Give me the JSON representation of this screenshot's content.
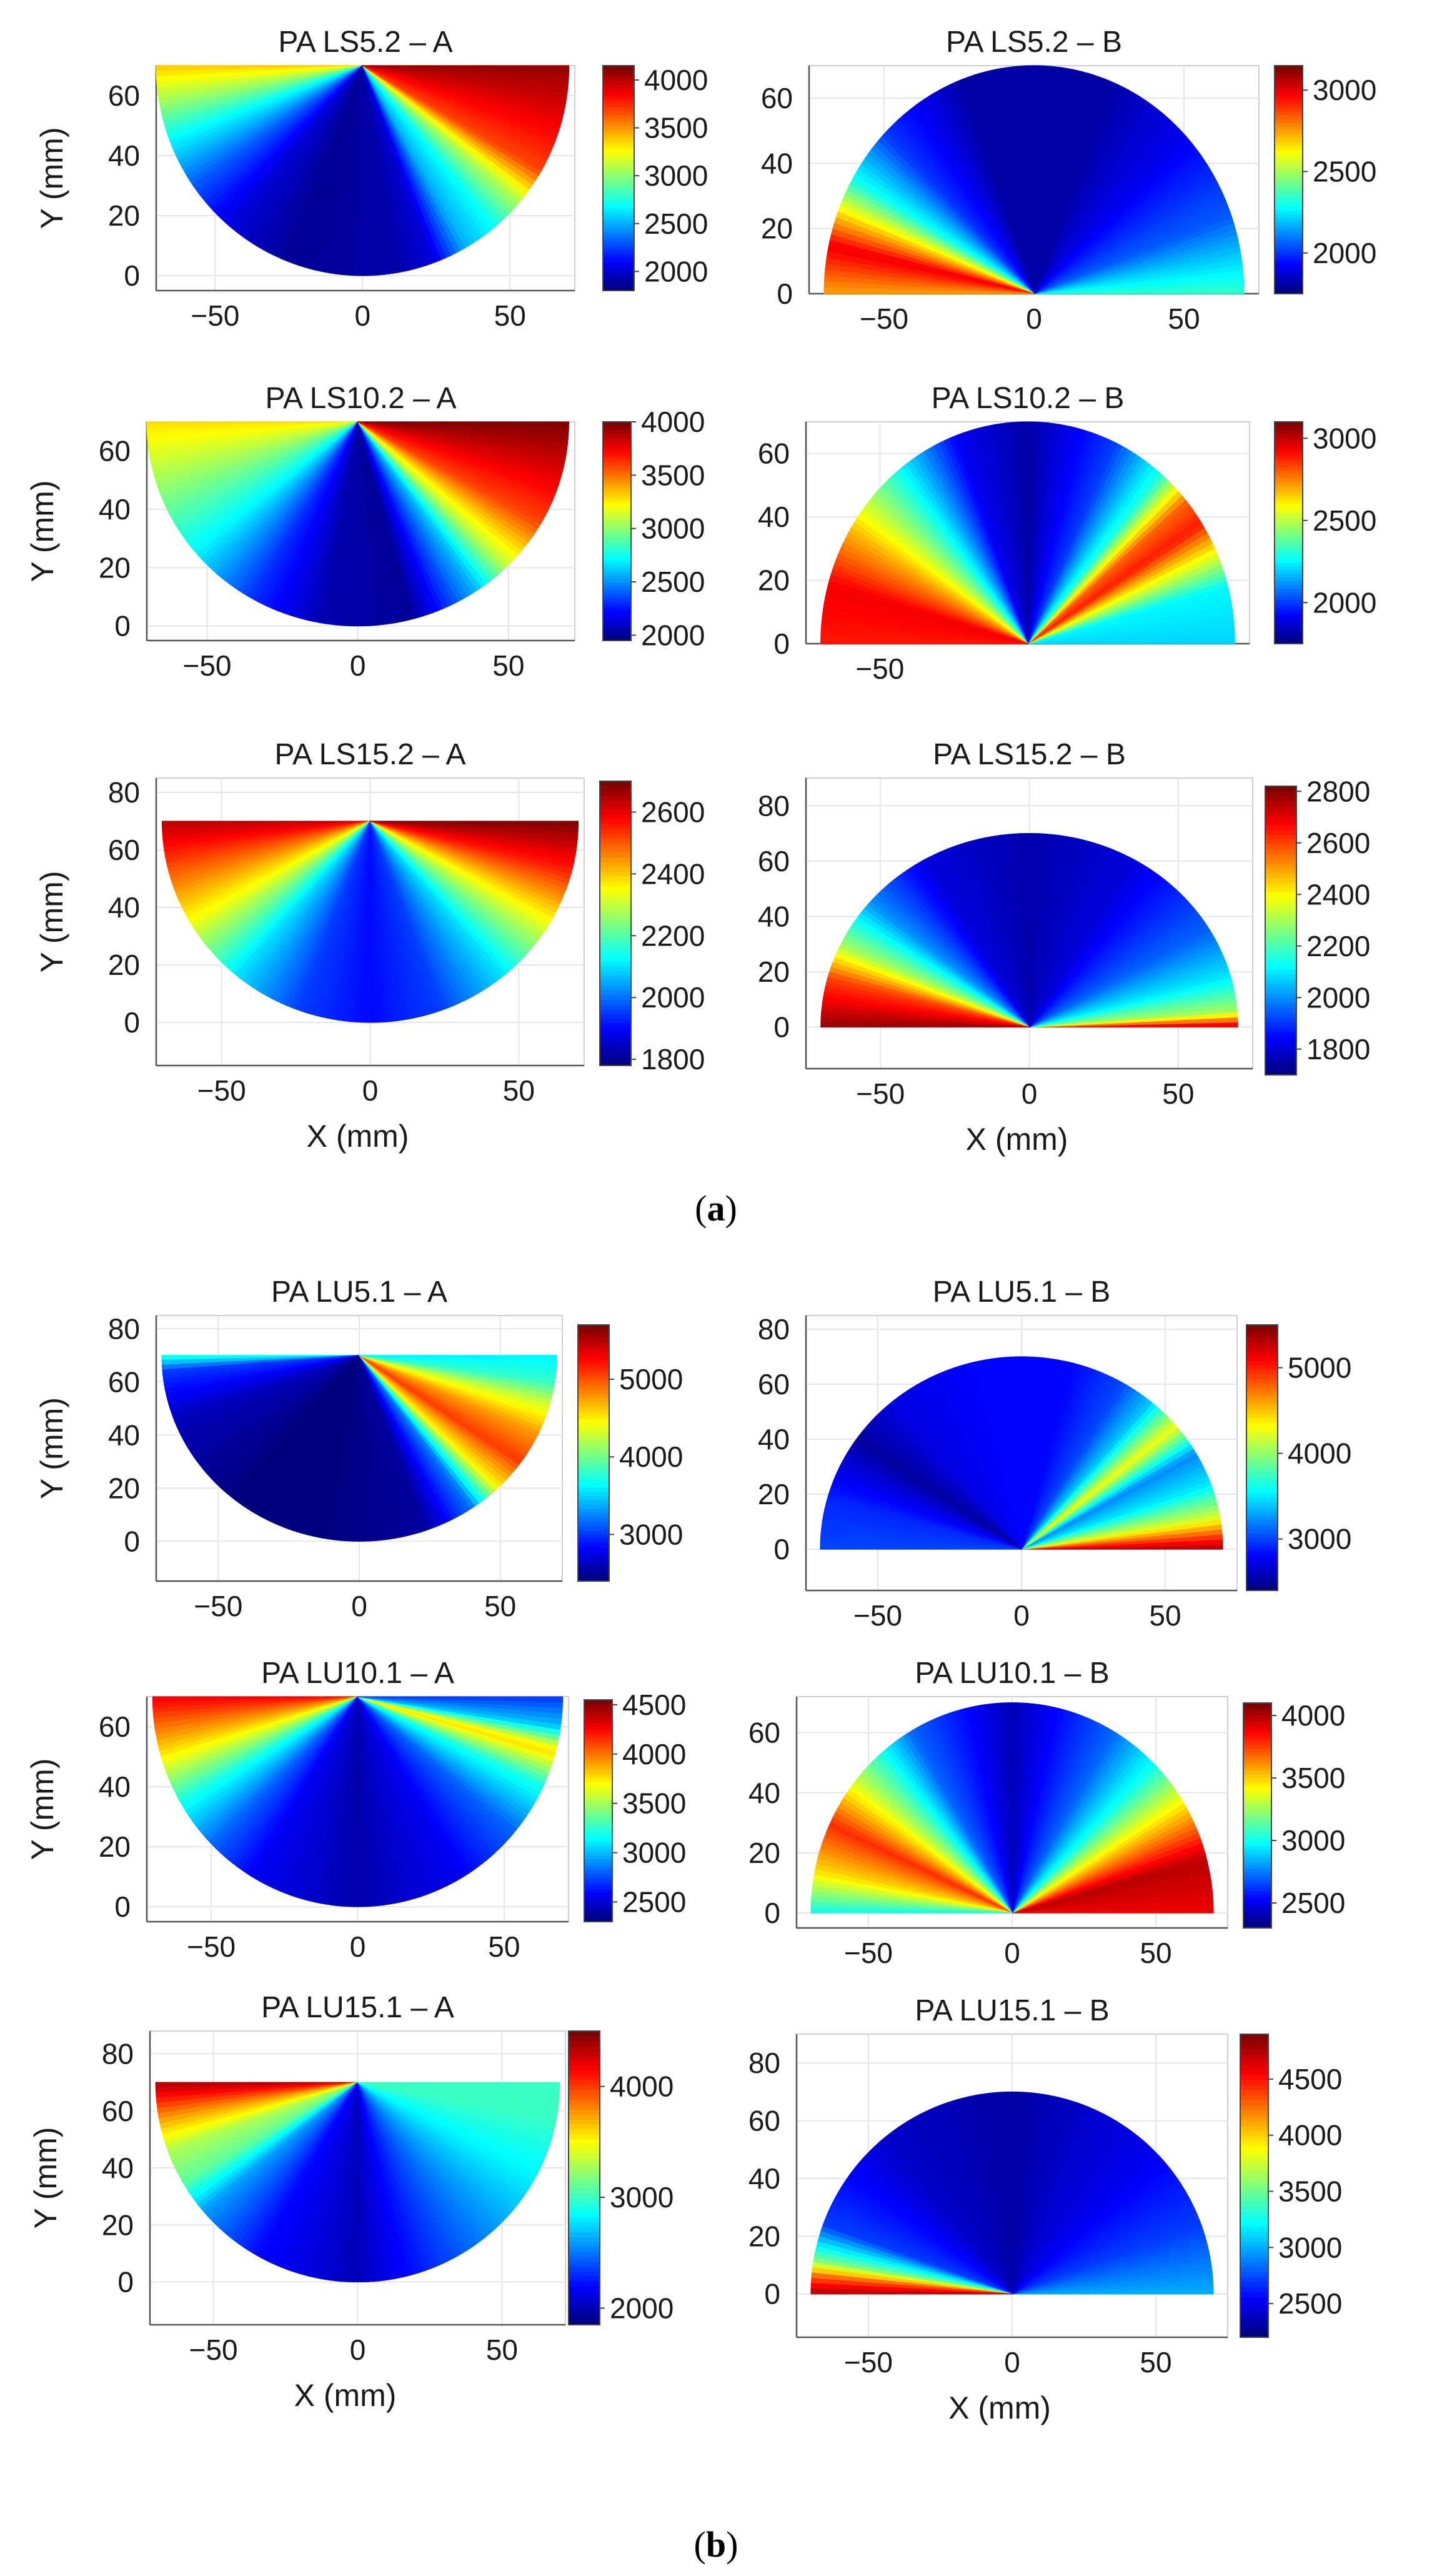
{
  "figure": {
    "label_a": "a",
    "label_b": "b"
  },
  "axis_labels": {
    "y": "Y (mm)",
    "x": "X (mm)"
  },
  "colors": {
    "map": [
      "#00007f",
      "#0000ff",
      "#007fff",
      "#00ffff",
      "#7fff7f",
      "#ffff00",
      "#ff7f00",
      "#ff0000",
      "#7f0000"
    ]
  },
  "chart_data": [
    {
      "type": "heatmap",
      "title": "PA LS5.2 – A",
      "xlabel": "",
      "ylabel": "Y (mm)",
      "shape": "lower",
      "xlim": [
        -70,
        72
      ],
      "ylim": [
        -5,
        70
      ],
      "xticks": [
        -50,
        0,
        50
      ],
      "yticks": [
        0,
        20,
        40,
        60
      ],
      "clim": [
        1800,
        4150
      ],
      "cticks": [
        2000,
        2500,
        3000,
        3500,
        4000
      ],
      "angle_profile": [
        [
          180,
          3400
        ],
        [
          200,
          2700
        ],
        [
          215,
          2300
        ],
        [
          230,
          2000
        ],
        [
          250,
          1850
        ],
        [
          280,
          1900
        ],
        [
          290,
          2000
        ],
        [
          300,
          2500
        ],
        [
          310,
          2700
        ],
        [
          320,
          3100
        ],
        [
          330,
          3700
        ],
        [
          345,
          3900
        ],
        [
          360,
          4100
        ]
      ]
    },
    {
      "type": "heatmap",
      "title": "PA LS5.2 – B",
      "xlabel": "",
      "ylabel": "",
      "shape": "upper",
      "xlim": [
        -75,
        75
      ],
      "ylim": [
        0,
        70
      ],
      "xticks": [
        -50,
        0,
        50
      ],
      "yticks": [
        0,
        20,
        40,
        60
      ],
      "clim": [
        1750,
        3150
      ],
      "cticks": [
        2000,
        2500,
        3000
      ],
      "angle_profile": [
        [
          0,
          2350
        ],
        [
          20,
          2050
        ],
        [
          45,
          1900
        ],
        [
          70,
          1800
        ],
        [
          110,
          1800
        ],
        [
          135,
          2000
        ],
        [
          150,
          2300
        ],
        [
          160,
          2700
        ],
        [
          168,
          3000
        ],
        [
          180,
          2750
        ]
      ]
    },
    {
      "type": "heatmap",
      "title": "PA LS10.2 – A",
      "xlabel": "",
      "ylabel": "Y (mm)",
      "shape": "lower",
      "xlim": [
        -70,
        72
      ],
      "ylim": [
        -5,
        70
      ],
      "xticks": [
        -50,
        0,
        50
      ],
      "yticks": [
        0,
        20,
        40,
        60
      ],
      "clim": [
        1950,
        4000
      ],
      "cticks": [
        2000,
        2500,
        3000,
        3500,
        4000
      ],
      "angle_profile": [
        [
          180,
          3300
        ],
        [
          200,
          3000
        ],
        [
          220,
          2700
        ],
        [
          240,
          2300
        ],
        [
          260,
          2050
        ],
        [
          285,
          2000
        ],
        [
          295,
          2300
        ],
        [
          305,
          2600
        ],
        [
          315,
          3100
        ],
        [
          330,
          3600
        ],
        [
          345,
          3800
        ],
        [
          360,
          4000
        ]
      ]
    },
    {
      "type": "heatmap",
      "title": "PA LS10.2 – B",
      "xlabel": "",
      "ylabel": "",
      "shape": "upper",
      "xlim": [
        -75,
        75
      ],
      "ylim": [
        0,
        70
      ],
      "xticks": [
        -50
      ],
      "yticks": [
        0,
        20,
        40,
        60
      ],
      "clim": [
        1750,
        3100
      ],
      "cticks": [
        2000,
        2500,
        3000
      ],
      "angle_profile": [
        [
          0,
          2200
        ],
        [
          15,
          2250
        ],
        [
          25,
          2600
        ],
        [
          33,
          2900
        ],
        [
          40,
          2800
        ],
        [
          50,
          2300
        ],
        [
          65,
          2000
        ],
        [
          90,
          1800
        ],
        [
          110,
          1900
        ],
        [
          130,
          2300
        ],
        [
          150,
          2700
        ],
        [
          165,
          2950
        ],
        [
          180,
          2900
        ]
      ]
    },
    {
      "type": "heatmap",
      "title": "PA LS15.2 – A",
      "xlabel": "X (mm)",
      "ylabel": "Y (mm)",
      "shape": "lower",
      "xlim": [
        -72,
        72
      ],
      "ylim": [
        -15,
        85
      ],
      "xticks": [
        -50,
        0,
        50
      ],
      "yticks": [
        0,
        20,
        40,
        60,
        80
      ],
      "clim": [
        1780,
        2700
      ],
      "cticks": [
        1800,
        2000,
        2200,
        2400,
        2600
      ],
      "angle_profile": [
        [
          180,
          2650
        ],
        [
          195,
          2500
        ],
        [
          210,
          2350
        ],
        [
          230,
          2100
        ],
        [
          250,
          1950
        ],
        [
          270,
          1900
        ],
        [
          290,
          1950
        ],
        [
          310,
          2100
        ],
        [
          330,
          2350
        ],
        [
          345,
          2550
        ],
        [
          360,
          2700
        ]
      ]
    },
    {
      "type": "heatmap",
      "title": "PA LS15.2 – B",
      "xlabel": "X (mm)",
      "ylabel": "",
      "shape": "upper",
      "xlim": [
        -75,
        75
      ],
      "ylim": [
        -15,
        90
      ],
      "xticks": [
        -50,
        0,
        50
      ],
      "yticks": [
        0,
        20,
        40,
        60,
        80
      ],
      "clim": [
        1700,
        2820
      ],
      "cticks": [
        1800,
        2000,
        2200,
        2400,
        2600,
        2800
      ],
      "angle_profile": [
        [
          0,
          2750
        ],
        [
          5,
          2300
        ],
        [
          15,
          2100
        ],
        [
          30,
          1950
        ],
        [
          60,
          1800
        ],
        [
          90,
          1750
        ],
        [
          120,
          1800
        ],
        [
          140,
          2000
        ],
        [
          155,
          2300
        ],
        [
          165,
          2600
        ],
        [
          180,
          2800
        ]
      ]
    },
    {
      "type": "heatmap",
      "title": "PA LU5.1 – A",
      "xlabel": "",
      "ylabel": "Y (mm)",
      "shape": "lower",
      "xlim": [
        -72,
        72
      ],
      "ylim": [
        -15,
        85
      ],
      "xticks": [
        -50,
        0,
        50
      ],
      "yticks": [
        0,
        20,
        40,
        60,
        80
      ],
      "clim": [
        2400,
        5700
      ],
      "cticks": [
        3000,
        4000,
        5000
      ],
      "angle_profile": [
        [
          180,
          3800
        ],
        [
          185,
          3000
        ],
        [
          200,
          2600
        ],
        [
          230,
          2400
        ],
        [
          260,
          2400
        ],
        [
          290,
          2500
        ],
        [
          305,
          3200
        ],
        [
          315,
          4500
        ],
        [
          325,
          5100
        ],
        [
          335,
          4800
        ],
        [
          345,
          4300
        ],
        [
          352,
          3800
        ],
        [
          360,
          3600
        ]
      ]
    },
    {
      "type": "heatmap",
      "title": "PA LU5.1 – B",
      "xlabel": "",
      "ylabel": "",
      "shape": "upper",
      "xlim": [
        -75,
        75
      ],
      "ylim": [
        -15,
        85
      ],
      "xticks": [
        -50,
        0,
        50
      ],
      "yticks": [
        0,
        20,
        40,
        60,
        80
      ],
      "clim": [
        2400,
        5500
      ],
      "cticks": [
        3000,
        4000,
        5000
      ],
      "angle_profile": [
        [
          0,
          5400
        ],
        [
          10,
          4200
        ],
        [
          20,
          3500
        ],
        [
          30,
          3200
        ],
        [
          40,
          4300
        ],
        [
          50,
          3400
        ],
        [
          60,
          3000
        ],
        [
          75,
          2800
        ],
        [
          100,
          2800
        ],
        [
          130,
          2700
        ],
        [
          145,
          2500
        ],
        [
          165,
          2900
        ],
        [
          180,
          3000
        ]
      ]
    },
    {
      "type": "heatmap",
      "title": "PA LU10.1 – A",
      "xlabel": "",
      "ylabel": "Y (mm)",
      "shape": "lower",
      "xlim": [
        -72,
        72
      ],
      "ylim": [
        -5,
        70
      ],
      "xticks": [
        -50,
        0,
        50
      ],
      "yticks": [
        0,
        20,
        40,
        60
      ],
      "clim": [
        2300,
        4550
      ],
      "cticks": [
        2500,
        3000,
        3500,
        4000,
        4500
      ],
      "angle_profile": [
        [
          180,
          4300
        ],
        [
          195,
          3800
        ],
        [
          210,
          3200
        ],
        [
          225,
          2800
        ],
        [
          240,
          2550
        ],
        [
          270,
          2400
        ],
        [
          300,
          2550
        ],
        [
          320,
          2800
        ],
        [
          335,
          3200
        ],
        [
          345,
          3800
        ],
        [
          352,
          3000
        ],
        [
          360,
          2700
        ]
      ]
    },
    {
      "type": "heatmap",
      "title": "PA LU10.1 – B",
      "xlabel": "",
      "ylabel": "",
      "shape": "upper",
      "xlim": [
        -75,
        75
      ],
      "ylim": [
        -5,
        72
      ],
      "xticks": [
        -50,
        0,
        50
      ],
      "yticks": [
        0,
        20,
        40,
        60
      ],
      "clim": [
        2300,
        4100
      ],
      "cticks": [
        2500,
        3000,
        3500,
        4000
      ],
      "angle_profile": [
        [
          0,
          3900
        ],
        [
          15,
          4000
        ],
        [
          30,
          3500
        ],
        [
          45,
          3000
        ],
        [
          60,
          2700
        ],
        [
          90,
          2400
        ],
        [
          120,
          2700
        ],
        [
          140,
          3300
        ],
        [
          155,
          3800
        ],
        [
          168,
          3500
        ],
        [
          180,
          3000
        ]
      ]
    },
    {
      "type": "heatmap",
      "title": "PA LU15.1 – A",
      "xlabel": "X (mm)",
      "ylabel": "Y (mm)",
      "shape": "lower",
      "xlim": [
        -72,
        72
      ],
      "ylim": [
        -15,
        88
      ],
      "xticks": [
        -50,
        0,
        50
      ],
      "yticks": [
        0,
        20,
        40,
        60,
        80
      ],
      "clim": [
        1850,
        4500
      ],
      "cticks": [
        2000,
        3000,
        4000
      ],
      "angle_profile": [
        [
          180,
          4400
        ],
        [
          190,
          3800
        ],
        [
          200,
          3300
        ],
        [
          210,
          3100
        ],
        [
          220,
          2600
        ],
        [
          240,
          2200
        ],
        [
          270,
          2000
        ],
        [
          300,
          2400
        ],
        [
          330,
          2800
        ],
        [
          350,
          3000
        ],
        [
          360,
          3000
        ]
      ]
    },
    {
      "type": "heatmap",
      "title": "PA LU15.1 – B",
      "xlabel": "X (mm)",
      "ylabel": "",
      "shape": "upper",
      "xlim": [
        -75,
        75
      ],
      "ylim": [
        -15,
        90
      ],
      "xticks": [
        -50,
        0,
        50
      ],
      "yticks": [
        0,
        20,
        40,
        60,
        80
      ],
      "clim": [
        2200,
        4900
      ],
      "cticks": [
        2500,
        3000,
        3500,
        4000,
        4500
      ],
      "angle_profile": [
        [
          0,
          3000
        ],
        [
          20,
          2700
        ],
        [
          45,
          2500
        ],
        [
          90,
          2300
        ],
        [
          130,
          2400
        ],
        [
          160,
          2700
        ],
        [
          170,
          3500
        ],
        [
          175,
          4300
        ],
        [
          180,
          4800
        ]
      ]
    }
  ]
}
